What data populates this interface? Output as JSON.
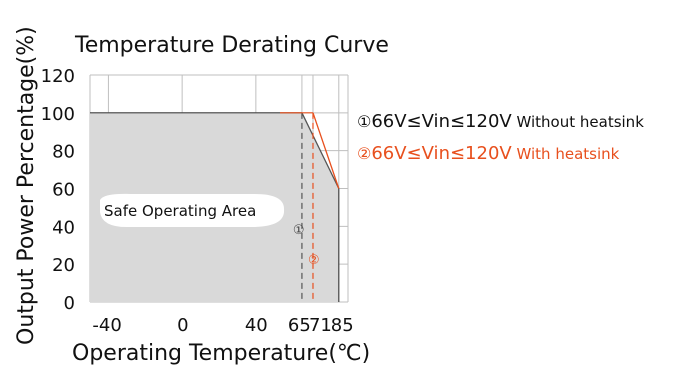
{
  "chart_data": {
    "type": "area",
    "title": "Temperature Derating Curve",
    "xlabel": "Operating Temperature(℃)",
    "ylabel": "Output Power Percentage(%)",
    "x_ticks": [
      "-40",
      "0",
      "40",
      "65",
      "71",
      "85"
    ],
    "y_ticks": [
      "0",
      "20",
      "40",
      "60",
      "80",
      "100",
      "120"
    ],
    "xlim": [
      -50,
      90
    ],
    "ylim": [
      0,
      120
    ],
    "grid": true,
    "series": [
      {
        "marker": "①",
        "color": "#555555",
        "points": [
          [
            -50,
            100
          ],
          [
            65,
            100
          ],
          [
            85,
            60
          ],
          [
            85,
            0
          ]
        ],
        "knee_x": 65
      },
      {
        "marker": "②",
        "color": "#e8501e",
        "points": [
          [
            -50,
            100
          ],
          [
            71,
            100
          ],
          [
            85,
            60
          ],
          [
            85,
            0
          ]
        ],
        "knee_x": 71
      }
    ],
    "legend": [
      {
        "marker": "①",
        "text_main": "66V≤Vin≤120V",
        "text_small": " Without heatsink",
        "color": "#111111"
      },
      {
        "marker": "②",
        "text_main": "66V≤Vin≤120V",
        "text_small": " With heatsink",
        "color": "#e8501e"
      }
    ],
    "region_label": "Safe Operating Area",
    "colors": {
      "area_fill": "#d9d9d9",
      "grid": "#bfbfbf",
      "line_dark": "#555555",
      "line_orange": "#e8501e"
    }
  }
}
